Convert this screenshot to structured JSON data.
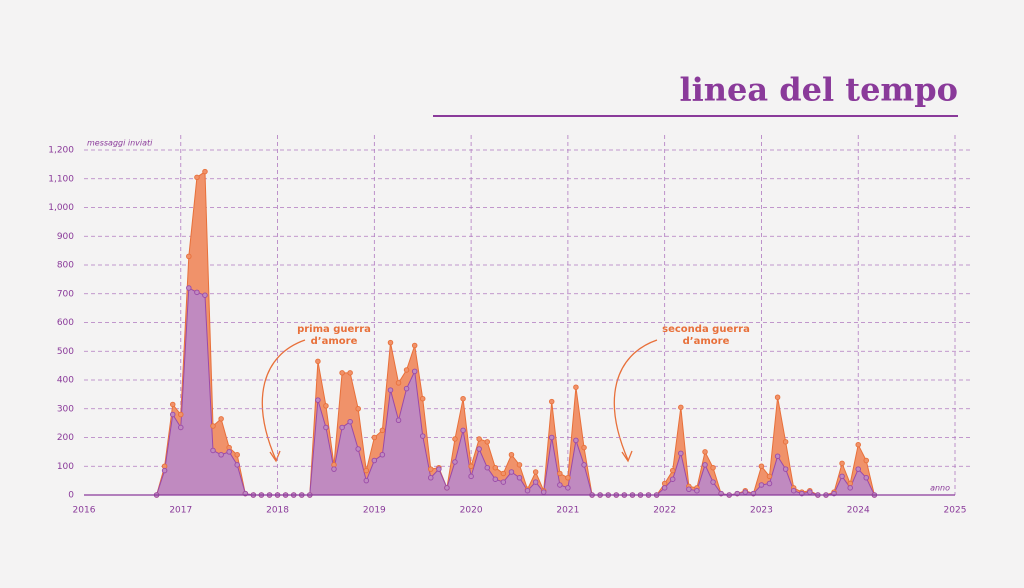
{
  "chart_data": {
    "type": "area",
    "title": "linea del tempo",
    "y_label": "messaggi inviati",
    "x_label": "anno",
    "annotations": [
      {
        "lines": [
          "prima guerra",
          "d’amore"
        ]
      },
      {
        "lines": [
          "seconda guerra",
          "d’amore"
        ]
      }
    ],
    "x": [
      2016.75,
      2016.833,
      2016.917,
      2017,
      2017.083,
      2017.167,
      2017.25,
      2017.333,
      2017.417,
      2017.5,
      2017.583,
      2017.667,
      2017.75,
      2017.833,
      2017.917,
      2018,
      2018.083,
      2018.167,
      2018.25,
      2018.333,
      2018.417,
      2018.5,
      2018.583,
      2018.667,
      2018.75,
      2018.833,
      2018.917,
      2019,
      2019.083,
      2019.167,
      2019.25,
      2019.333,
      2019.417,
      2019.5,
      2019.583,
      2019.667,
      2019.75,
      2019.833,
      2019.917,
      2020,
      2020.083,
      2020.167,
      2020.25,
      2020.333,
      2020.417,
      2020.5,
      2020.583,
      2020.667,
      2020.75,
      2020.833,
      2020.917,
      2021,
      2021.083,
      2021.167,
      2021.25,
      2021.333,
      2021.417,
      2021.5,
      2021.583,
      2021.667,
      2021.75,
      2021.833,
      2021.917,
      2022,
      2022.083,
      2022.167,
      2022.25,
      2022.333,
      2022.417,
      2022.5,
      2022.583,
      2022.667,
      2022.75,
      2022.833,
      2022.917,
      2023,
      2023.083,
      2023.167,
      2023.25,
      2023.333,
      2023.417,
      2023.5,
      2023.583,
      2023.667,
      2023.75,
      2023.833,
      2023.917,
      2024,
      2024.083,
      2024.167
    ],
    "series": [
      {
        "color": "#f0926a",
        "line_color": "#e8703a",
        "values": [
          0,
          100,
          315,
          280,
          830,
          1105,
          1125,
          240,
          265,
          165,
          140,
          5,
          0,
          0,
          0,
          0,
          0,
          0,
          0,
          0,
          465,
          310,
          105,
          425,
          425,
          300,
          85,
          200,
          225,
          530,
          390,
          435,
          520,
          335,
          90,
          95,
          25,
          195,
          335,
          100,
          195,
          185,
          95,
          75,
          140,
          105,
          20,
          80,
          15,
          325,
          75,
          60,
          375,
          165,
          0,
          0,
          0,
          0,
          0,
          0,
          0,
          0,
          0,
          40,
          85,
          305,
          30,
          25,
          150,
          95,
          5,
          0,
          5,
          15,
          5,
          100,
          65,
          340,
          185,
          25,
          10,
          15,
          0,
          0,
          10,
          110,
          40,
          175,
          120,
          0
        ]
      },
      {
        "color": "#c08ac0",
        "line_color": "#9a4aa8",
        "values": [
          0,
          85,
          280,
          235,
          720,
          705,
          695,
          155,
          140,
          150,
          105,
          5,
          0,
          0,
          0,
          0,
          0,
          0,
          0,
          0,
          330,
          235,
          90,
          235,
          255,
          160,
          50,
          120,
          140,
          365,
          260,
          370,
          430,
          205,
          60,
          90,
          25,
          115,
          225,
          65,
          160,
          95,
          55,
          45,
          80,
          60,
          15,
          45,
          10,
          200,
          35,
          25,
          190,
          105,
          0,
          0,
          0,
          0,
          0,
          0,
          0,
          0,
          0,
          25,
          55,
          145,
          20,
          15,
          105,
          45,
          5,
          0,
          5,
          10,
          5,
          35,
          40,
          135,
          90,
          15,
          5,
          10,
          0,
          0,
          5,
          65,
          25,
          90,
          60,
          0
        ]
      }
    ],
    "xlim": [
      2016,
      2025
    ],
    "xticks": [
      2016,
      2017,
      2018,
      2019,
      2020,
      2021,
      2022,
      2023,
      2024,
      2025
    ],
    "ylim": [
      0,
      1200
    ],
    "yticks": [
      0,
      100,
      200,
      300,
      400,
      500,
      600,
      700,
      800,
      900,
      {
        "value": 1000,
        "label": "1,000"
      },
      {
        "value": 1100,
        "label": "1,100"
      },
      {
        "value": 1200,
        "label": "1,200"
      }
    ],
    "grid": true,
    "grid_color": "#b07ac0",
    "text_color": "#8a3a9a",
    "annotation_color": "#e8703a"
  }
}
